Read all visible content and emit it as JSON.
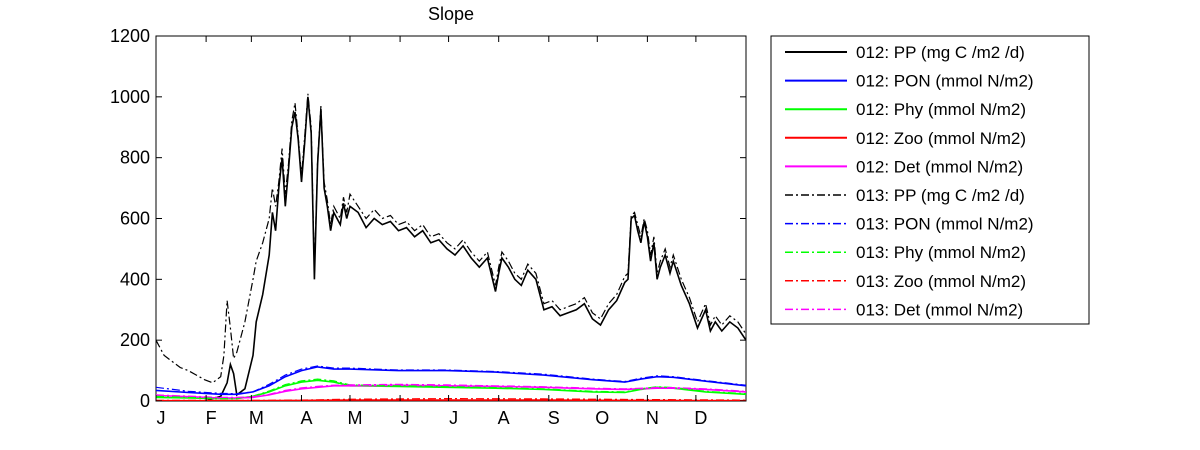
{
  "chart_data": {
    "type": "line",
    "title": "Slope",
    "xlabel": "",
    "ylabel": "",
    "ylim": [
      0,
      1200
    ],
    "xlim": [
      0,
      365
    ],
    "yticks": [
      0,
      200,
      400,
      600,
      800,
      1000,
      1200
    ],
    "xtick_labels": [
      "J",
      "F",
      "M",
      "A",
      "M",
      "J",
      "J",
      "A",
      "S",
      "O",
      "N",
      "D"
    ],
    "xtick_days": [
      0,
      31,
      59,
      90,
      120,
      151,
      181,
      212,
      243,
      273,
      304,
      334
    ],
    "grid": false,
    "legend_position": "outside-right",
    "series": [
      {
        "name": "012: PP (mg C /m2 /d)",
        "color": "#000000",
        "style": "solid",
        "x": [
          0,
          10,
          20,
          30,
          40,
          44,
          46,
          48,
          50,
          55,
          60,
          62,
          66,
          70,
          72,
          74,
          76,
          78,
          80,
          82,
          84,
          86,
          88,
          90,
          92,
          94,
          96,
          98,
          100,
          102,
          104,
          106,
          108,
          110,
          112,
          114,
          116,
          118,
          120,
          125,
          130,
          135,
          140,
          145,
          150,
          155,
          160,
          165,
          170,
          175,
          180,
          185,
          190,
          195,
          200,
          205,
          210,
          212,
          214,
          218,
          222,
          226,
          230,
          235,
          240,
          245,
          250,
          255,
          260,
          265,
          270,
          275,
          280,
          285,
          290,
          292,
          294,
          296,
          298,
          300,
          302,
          304,
          306,
          308,
          310,
          312,
          315,
          318,
          320,
          325,
          330,
          335,
          340,
          343,
          346,
          350,
          355,
          360,
          365
        ],
        "y": [
          0,
          0,
          0,
          0,
          15,
          60,
          120,
          90,
          20,
          40,
          150,
          260,
          350,
          480,
          620,
          560,
          700,
          800,
          640,
          760,
          900,
          950,
          860,
          720,
          850,
          1000,
          880,
          400,
          780,
          960,
          700,
          640,
          560,
          620,
          600,
          580,
          650,
          600,
          640,
          620,
          570,
          600,
          580,
          590,
          560,
          570,
          540,
          560,
          520,
          530,
          500,
          480,
          510,
          470,
          440,
          470,
          360,
          420,
          470,
          440,
          400,
          380,
          430,
          400,
          300,
          310,
          280,
          290,
          300,
          320,
          270,
          250,
          300,
          330,
          390,
          400,
          600,
          610,
          560,
          520,
          590,
          540,
          460,
          520,
          400,
          440,
          480,
          420,
          460,
          380,
          320,
          240,
          300,
          230,
          260,
          230,
          260,
          240,
          200
        ]
      },
      {
        "name": "012: PON (mmol N/m2)",
        "color": "#0000ff",
        "style": "solid",
        "x": [
          0,
          20,
          40,
          50,
          60,
          70,
          80,
          90,
          100,
          110,
          120,
          150,
          180,
          210,
          240,
          270,
          290,
          300,
          310,
          320,
          340,
          365
        ],
        "y": [
          35,
          28,
          22,
          22,
          30,
          50,
          80,
          100,
          112,
          105,
          105,
          100,
          100,
          95,
          85,
          70,
          62,
          72,
          80,
          78,
          65,
          50
        ]
      },
      {
        "name": "012: Phy (mmol N/m2)",
        "color": "#00ff00",
        "style": "solid",
        "x": [
          0,
          20,
          40,
          50,
          60,
          70,
          80,
          90,
          100,
          110,
          120,
          150,
          180,
          210,
          240,
          270,
          290,
          300,
          310,
          320,
          340,
          365
        ],
        "y": [
          12,
          10,
          8,
          8,
          15,
          30,
          50,
          62,
          68,
          62,
          50,
          48,
          45,
          42,
          38,
          30,
          28,
          38,
          45,
          42,
          30,
          22
        ]
      },
      {
        "name": "012: Zoo (mmol N/m2)",
        "color": "#ff0000",
        "style": "solid",
        "x": [
          0,
          60,
          90,
          120,
          180,
          240,
          300,
          365
        ],
        "y": [
          1,
          1,
          2,
          3,
          3,
          3,
          2,
          1
        ]
      },
      {
        "name": "012: Det (mmol N/m2)",
        "color": "#ff00ff",
        "style": "solid",
        "x": [
          0,
          20,
          40,
          50,
          60,
          70,
          80,
          90,
          100,
          110,
          120,
          150,
          180,
          210,
          240,
          270,
          290,
          300,
          310,
          320,
          340,
          365
        ],
        "y": [
          18,
          14,
          10,
          10,
          12,
          20,
          32,
          40,
          45,
          50,
          50,
          52,
          50,
          48,
          45,
          40,
          38,
          40,
          42,
          42,
          38,
          30
        ]
      },
      {
        "name": "013: PP (mg C /m2 /d)",
        "color": "#000000",
        "style": "dashdot",
        "x": [
          0,
          5,
          10,
          15,
          20,
          25,
          30,
          35,
          40,
          42,
          44,
          46,
          48,
          50,
          55,
          60,
          62,
          66,
          70,
          72,
          74,
          76,
          78,
          80,
          82,
          84,
          86,
          88,
          90,
          92,
          94,
          96,
          98,
          100,
          102,
          104,
          106,
          108,
          110,
          112,
          114,
          116,
          118,
          120,
          125,
          130,
          135,
          140,
          145,
          150,
          155,
          160,
          165,
          170,
          175,
          180,
          185,
          190,
          195,
          200,
          205,
          210,
          212,
          214,
          218,
          222,
          226,
          230,
          235,
          240,
          245,
          250,
          255,
          260,
          265,
          270,
          275,
          280,
          285,
          290,
          292,
          294,
          296,
          298,
          300,
          302,
          304,
          306,
          308,
          310,
          312,
          315,
          318,
          320,
          325,
          330,
          335,
          340,
          343,
          346,
          350,
          355,
          360,
          365
        ],
        "y": [
          200,
          150,
          130,
          110,
          100,
          85,
          70,
          60,
          80,
          150,
          330,
          240,
          140,
          160,
          260,
          400,
          460,
          520,
          600,
          700,
          640,
          720,
          830,
          680,
          780,
          920,
          980,
          870,
          740,
          870,
          1010,
          900,
          420,
          790,
          970,
          720,
          660,
          580,
          640,
          620,
          600,
          670,
          620,
          680,
          640,
          600,
          630,
          600,
          610,
          580,
          590,
          560,
          580,
          540,
          550,
          520,
          500,
          530,
          490,
          460,
          490,
          380,
          440,
          490,
          460,
          420,
          400,
          450,
          420,
          320,
          330,
          300,
          310,
          320,
          340,
          290,
          270,
          320,
          350,
          410,
          420,
          610,
          620,
          580,
          540,
          600,
          560,
          480,
          540,
          420,
          460,
          500,
          440,
          480,
          400,
          340,
          260,
          320,
          250,
          280,
          250,
          280,
          260,
          220
        ]
      },
      {
        "name": "013: PON (mmol N/m2)",
        "color": "#0000ff",
        "style": "dashdot",
        "x": [
          0,
          20,
          40,
          50,
          60,
          70,
          80,
          90,
          100,
          110,
          120,
          150,
          180,
          210,
          240,
          270,
          290,
          300,
          310,
          320,
          340,
          365
        ],
        "y": [
          45,
          32,
          25,
          24,
          30,
          55,
          85,
          105,
          115,
          108,
          108,
          102,
          102,
          97,
          88,
          72,
          64,
          75,
          83,
          80,
          67,
          52
        ]
      },
      {
        "name": "013: Phy (mmol N/m2)",
        "color": "#00ff00",
        "style": "dashdot",
        "x": [
          0,
          20,
          40,
          50,
          60,
          70,
          80,
          90,
          100,
          110,
          120,
          150,
          180,
          210,
          240,
          270,
          290,
          300,
          310,
          320,
          340,
          365
        ],
        "y": [
          15,
          12,
          9,
          9,
          16,
          33,
          54,
          66,
          72,
          66,
          53,
          50,
          47,
          44,
          40,
          32,
          30,
          40,
          47,
          44,
          32,
          24
        ]
      },
      {
        "name": "013: Zoo (mmol N/m2)",
        "color": "#ff0000",
        "style": "dashdot",
        "x": [
          0,
          60,
          90,
          120,
          180,
          240,
          300,
          365
        ],
        "y": [
          2,
          2,
          3,
          6,
          8,
          7,
          5,
          3
        ]
      },
      {
        "name": "013: Det (mmol N/m2)",
        "color": "#ff00ff",
        "style": "dashdot",
        "x": [
          0,
          20,
          40,
          50,
          60,
          70,
          80,
          90,
          100,
          110,
          120,
          150,
          180,
          210,
          240,
          270,
          290,
          300,
          310,
          320,
          340,
          365
        ],
        "y": [
          20,
          16,
          12,
          12,
          14,
          22,
          35,
          43,
          48,
          52,
          53,
          55,
          53,
          50,
          47,
          42,
          40,
          42,
          44,
          44,
          40,
          32
        ]
      }
    ]
  }
}
